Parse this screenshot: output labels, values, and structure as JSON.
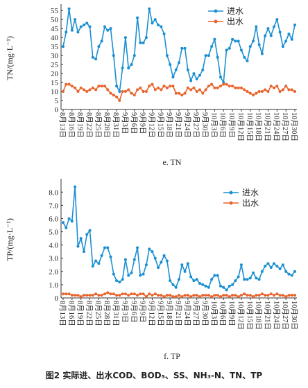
{
  "chart_data": [
    {
      "type": "line",
      "title": "e. TN",
      "y_label": "TN/(mg·L⁻¹)",
      "legend": "top-right",
      "categories": [
        "8月13日",
        null,
        null,
        "8月16日",
        null,
        null,
        "8月19日",
        null,
        null,
        "8月22日",
        null,
        null,
        "8月25日",
        null,
        null,
        "8月28日",
        null,
        null,
        "8月31日",
        null,
        null,
        "9月3日",
        null,
        null,
        "9月6日",
        null,
        null,
        "9月9日",
        null,
        null,
        "9月12日",
        null,
        null,
        "9月15日",
        null,
        null,
        "9月18日",
        null,
        null,
        "9月21日",
        null,
        null,
        "9月24日",
        null,
        null,
        "9月27日",
        null,
        null,
        "9月30日",
        null,
        null,
        "10月3日",
        null,
        null,
        "10月6日",
        null,
        null,
        "10月9日",
        null,
        null,
        "10月12日",
        null,
        null,
        "10月15日",
        null,
        null,
        "10月18日",
        null,
        null,
        "10月21日",
        null,
        null,
        "10月24日",
        null,
        null,
        "10月27日",
        null,
        null,
        "10月30日"
      ],
      "series": [
        {
          "name": "进水",
          "color": "#1a8fd1",
          "values": [
            35,
            43,
            56,
            44,
            50,
            43,
            46,
            47,
            48,
            46,
            29,
            28,
            35,
            38,
            46,
            44,
            45,
            30,
            13,
            10,
            23,
            40,
            23,
            25,
            30,
            51,
            37,
            37,
            40,
            56,
            48,
            50,
            47,
            46,
            42,
            30,
            25,
            18,
            22,
            26,
            34,
            34,
            22,
            16,
            20,
            17,
            19,
            22,
            30,
            30,
            35,
            39,
            29,
            18,
            15,
            33,
            34,
            39,
            38,
            38,
            33,
            29,
            27,
            35,
            38,
            46,
            36,
            31,
            41,
            45,
            41,
            46,
            50,
            43,
            35,
            38,
            42,
            39,
            47
          ]
        },
        {
          "name": "出水",
          "color": "#e8642c",
          "values": [
            10,
            14,
            14,
            13,
            12,
            10,
            12,
            11,
            10,
            11,
            12,
            11,
            13,
            13,
            13,
            11,
            9,
            8,
            7,
            5,
            10,
            10,
            11,
            9,
            8,
            11,
            12,
            10,
            10,
            13,
            14,
            11,
            12,
            11,
            13,
            12,
            13,
            13,
            9,
            9,
            8,
            9,
            12,
            11,
            12,
            10,
            11,
            9,
            11,
            13,
            14,
            12,
            12,
            13,
            14,
            14,
            13,
            13,
            12,
            12,
            12,
            11,
            10,
            9,
            8,
            9,
            10,
            10,
            11,
            10,
            13,
            12,
            13,
            10,
            11,
            13,
            11,
            11,
            10
          ]
        }
      ],
      "ylim": [
        0,
        57
      ],
      "yticks": [
        0,
        5,
        10,
        15,
        20,
        25,
        30,
        35,
        40,
        45,
        50,
        55
      ]
    },
    {
      "type": "line",
      "title": "f. TP",
      "y_label": "TP/(mg·L⁻¹)",
      "legend": "top-right",
      "categories": [
        "8月13日",
        null,
        null,
        "8月16日",
        null,
        null,
        "8月19日",
        null,
        null,
        "8月22日",
        null,
        null,
        "8月25日",
        null,
        null,
        "8月28日",
        null,
        null,
        "8月31日",
        null,
        null,
        "9月3日",
        null,
        null,
        "9月6日",
        null,
        null,
        "9月9日",
        null,
        null,
        "9月12日",
        null,
        null,
        "9月15日",
        null,
        null,
        "9月18日",
        null,
        null,
        "9月21日",
        null,
        null,
        "9月24日",
        null,
        null,
        "9月27日",
        null,
        null,
        "9月30日",
        null,
        null,
        "10月3日",
        null,
        null,
        "10月6日",
        null,
        null,
        "10月9日",
        null,
        null,
        "10月12日",
        null,
        null,
        "10月15日",
        null,
        null,
        "10月18日",
        null,
        null,
        "10月21日",
        null,
        null,
        "10月24日",
        null,
        null,
        "10月27日",
        null,
        null,
        "10月30日"
      ],
      "series": [
        {
          "name": "进水",
          "color": "#1a8fd1",
          "values": [
            5.7,
            5.3,
            6.0,
            5.8,
            8.4,
            3.9,
            4.5,
            3.5,
            4.8,
            5.1,
            2.4,
            2.8,
            2.6,
            3.2,
            3.8,
            3.8,
            3.1,
            1.8,
            1.3,
            1.2,
            1.4,
            2.9,
            1.7,
            1.9,
            2.9,
            3.8,
            1.7,
            1.8,
            2.5,
            3.7,
            3.5,
            3.0,
            2.3,
            2.7,
            3.2,
            2.8,
            1.3,
            1.0,
            0.8,
            1.4,
            2.5,
            2.0,
            2.6,
            1.6,
            1.3,
            1.4,
            1.1,
            1.0,
            0.9,
            0.8,
            1.4,
            1.7,
            1.7,
            0.9,
            0.8,
            0.6,
            0.9,
            1.0,
            1.3,
            1.6,
            2.5,
            1.4,
            1.4,
            1.5,
            1.9,
            1.5,
            1.4,
            2.0,
            2.4,
            2.6,
            2.3,
            2.6,
            2.4,
            2.2,
            2.5,
            2.0,
            1.8,
            1.7,
            2.0
          ]
        },
        {
          "name": "出水",
          "color": "#e8642c",
          "values": [
            0.3,
            0.3,
            0.3,
            0.2,
            0.2,
            0.2,
            0.1,
            0.2,
            0.2,
            0.2,
            0.2,
            0.3,
            0.2,
            0.2,
            0.3,
            0.4,
            0.3,
            0.3,
            0.2,
            0.2,
            0.3,
            0.3,
            0.2,
            0.3,
            0.3,
            0.2,
            0.3,
            0.3,
            0.1,
            0.3,
            0.2,
            0.3,
            0.2,
            0.2,
            0.1,
            0.2,
            0.2,
            0.1,
            0.1,
            0.2,
            0.1,
            0.2,
            0.2,
            0.1,
            0.2,
            0.2,
            0.1,
            0.2,
            0.2,
            0.2,
            0.1,
            0.2,
            0.2,
            0.1,
            0.2,
            0.2,
            0.1,
            0.2,
            0.2,
            0.1,
            0.2,
            0.3,
            0.2,
            0.2,
            0.1,
            0.2,
            0.2,
            0.3,
            0.2,
            0.2,
            0.3,
            0.2,
            0.3,
            0.2,
            0.2,
            0.1,
            0.2,
            0.2,
            0.2
          ]
        }
      ],
      "ylim": [
        0,
        8.8
      ],
      "yticks": [
        0,
        {
          "value": 1,
          "label": "1.0"
        },
        {
          "value": 2,
          "label": "2.0"
        },
        {
          "value": 3,
          "label": "3.0"
        },
        {
          "value": 4,
          "label": "4.0"
        },
        {
          "value": 5,
          "label": "5.0"
        },
        {
          "value": 6,
          "label": "6.0"
        },
        {
          "value": 7,
          "label": "7.0"
        },
        {
          "value": 8,
          "label": "8.0"
        }
      ]
    }
  ],
  "figure_caption": "图2 实际进、出水COD、BOD₅、SS、NH₃-N、TN、TP"
}
